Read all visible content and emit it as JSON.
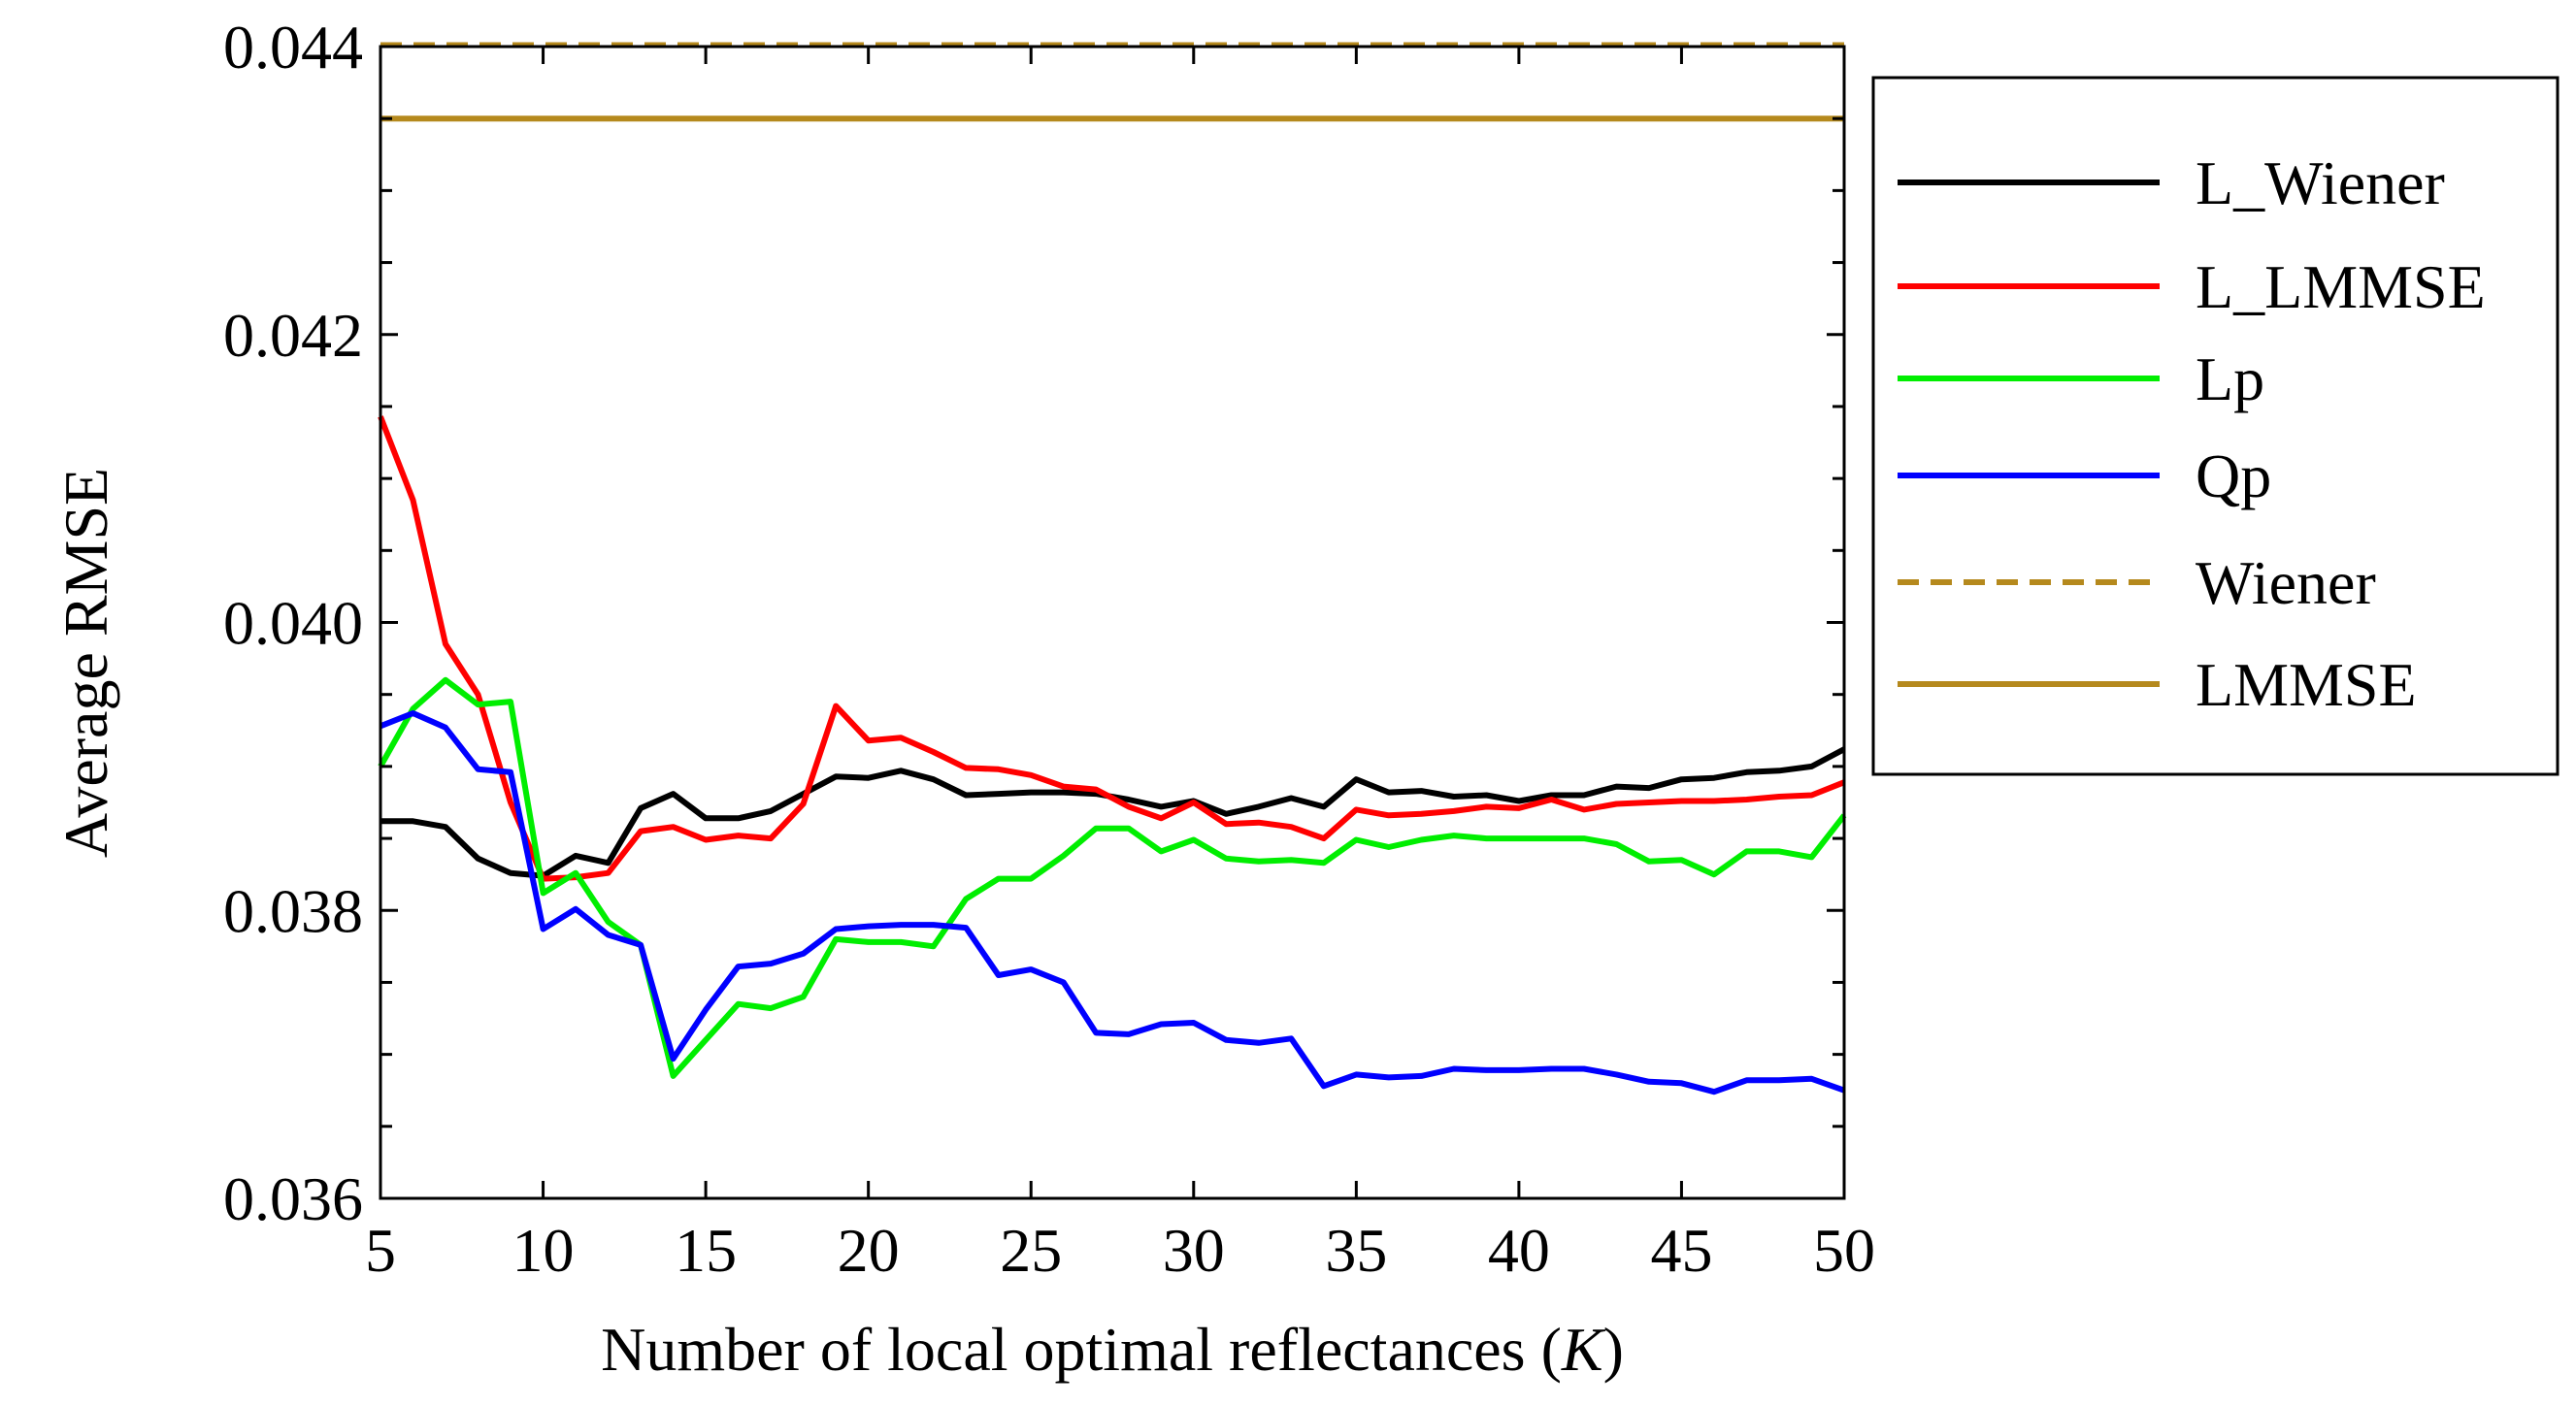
{
  "chart_data": {
    "type": "line",
    "title": "",
    "xlabel": "Number of local optimal reflectances (",
    "xlabel_var": "K",
    "xlabel_end": ")",
    "ylabel": "Average RMSE",
    "xlim": [
      5,
      50
    ],
    "ylim": [
      0.036,
      0.044
    ],
    "xticks": [
      5,
      10,
      15,
      20,
      25,
      30,
      35,
      40,
      45,
      50
    ],
    "xtick_labels": [
      "5",
      "10",
      "15",
      "20",
      "25",
      "30",
      "35",
      "40",
      "45",
      "50"
    ],
    "yticks": [
      0.036,
      0.038,
      0.04,
      0.042,
      0.044
    ],
    "ytick_labels": [
      "0.036",
      "0.038",
      "0.040",
      "0.042",
      "0.044"
    ],
    "legend_position": "outside-right",
    "x": [
      5,
      6,
      7,
      8,
      9,
      10,
      11,
      12,
      13,
      14,
      15,
      16,
      17,
      18,
      19,
      20,
      21,
      22,
      23,
      24,
      25,
      26,
      27,
      28,
      29,
      30,
      31,
      32,
      33,
      34,
      35,
      36,
      37,
      38,
      39,
      40,
      41,
      42,
      43,
      44,
      45,
      46,
      47,
      48,
      49,
      50
    ],
    "series": [
      {
        "name": "L_Wiener",
        "color": "#000000",
        "dash": "solid",
        "values": [
          0.03862,
          0.03862,
          0.03858,
          0.03836,
          0.03826,
          0.03824,
          0.03838,
          0.03833,
          0.03871,
          0.03881,
          0.03864,
          0.03864,
          0.03869,
          0.03881,
          0.03893,
          0.03892,
          0.03897,
          0.03891,
          0.0388,
          0.03881,
          0.03882,
          0.03882,
          0.03881,
          0.03877,
          0.03872,
          0.03876,
          0.03867,
          0.03872,
          0.03878,
          0.03872,
          0.03891,
          0.03882,
          0.03883,
          0.03879,
          0.0388,
          0.03876,
          0.0388,
          0.0388,
          0.03886,
          0.03885,
          0.03891,
          0.03892,
          0.03896,
          0.03897,
          0.039,
          0.03912
        ]
      },
      {
        "name": "L_LMMSE",
        "color": "#ff0000",
        "dash": "solid",
        "values": [
          0.04143,
          0.04085,
          0.03985,
          0.0395,
          0.03875,
          0.03822,
          0.03823,
          0.03826,
          0.03855,
          0.03858,
          0.03849,
          0.03852,
          0.0385,
          0.03874,
          0.03942,
          0.03918,
          0.0392,
          0.0391,
          0.03899,
          0.03898,
          0.03894,
          0.03886,
          0.03884,
          0.03872,
          0.03864,
          0.03875,
          0.0386,
          0.03861,
          0.03858,
          0.0385,
          0.0387,
          0.03866,
          0.03867,
          0.03869,
          0.03872,
          0.03871,
          0.03877,
          0.0387,
          0.03874,
          0.03875,
          0.03876,
          0.03876,
          0.03877,
          0.03879,
          0.0388,
          0.03889
        ]
      },
      {
        "name": "Lp",
        "color": "#00ee00",
        "dash": "solid",
        "values": [
          0.039,
          0.0394,
          0.0396,
          0.03943,
          0.03945,
          0.03812,
          0.03826,
          0.03792,
          0.03776,
          0.03685,
          0.0371,
          0.03735,
          0.03732,
          0.0374,
          0.0378,
          0.03778,
          0.03778,
          0.03775,
          0.03808,
          0.03822,
          0.03822,
          0.03838,
          0.03857,
          0.03857,
          0.03841,
          0.03849,
          0.03836,
          0.03834,
          0.03835,
          0.03833,
          0.03849,
          0.03844,
          0.03849,
          0.03852,
          0.0385,
          0.0385,
          0.0385,
          0.0385,
          0.03846,
          0.03834,
          0.03835,
          0.03825,
          0.03841,
          0.03841,
          0.03837,
          0.03866
        ]
      },
      {
        "name": "Qp",
        "color": "#0000ff",
        "dash": "solid",
        "values": [
          0.03928,
          0.03937,
          0.03927,
          0.03898,
          0.03896,
          0.03787,
          0.03801,
          0.03783,
          0.03776,
          0.03697,
          0.03731,
          0.03761,
          0.03763,
          0.0377,
          0.03787,
          0.03789,
          0.0379,
          0.0379,
          0.03788,
          0.03755,
          0.03759,
          0.0375,
          0.03715,
          0.03714,
          0.03721,
          0.03722,
          0.0371,
          0.03708,
          0.03711,
          0.03678,
          0.03686,
          0.03684,
          0.03685,
          0.0369,
          0.03689,
          0.03689,
          0.0369,
          0.0369,
          0.03686,
          0.03681,
          0.0368,
          0.03674,
          0.03682,
          0.03682,
          0.03683,
          0.03675
        ]
      },
      {
        "name": "Wiener",
        "color": "#b5891d",
        "dash": "dashed",
        "values": [
          0.04401,
          0.04401,
          0.04401,
          0.04401,
          0.04401,
          0.04401,
          0.04401,
          0.04401,
          0.04401,
          0.04401,
          0.04401,
          0.04401,
          0.04401,
          0.04401,
          0.04401,
          0.04401,
          0.04401,
          0.04401,
          0.04401,
          0.04401,
          0.04401,
          0.04401,
          0.04401,
          0.04401,
          0.04401,
          0.04401,
          0.04401,
          0.04401,
          0.04401,
          0.04401,
          0.04401,
          0.04401,
          0.04401,
          0.04401,
          0.04401,
          0.04401,
          0.04401,
          0.04401,
          0.04401,
          0.04401,
          0.04401,
          0.04401,
          0.04401,
          0.04401,
          0.04401,
          0.04401
        ]
      },
      {
        "name": "LMMSE",
        "color": "#b5891d",
        "dash": "solid",
        "values": [
          0.0435,
          0.0435,
          0.0435,
          0.0435,
          0.0435,
          0.0435,
          0.0435,
          0.0435,
          0.0435,
          0.0435,
          0.0435,
          0.0435,
          0.0435,
          0.0435,
          0.0435,
          0.0435,
          0.0435,
          0.0435,
          0.0435,
          0.0435,
          0.0435,
          0.0435,
          0.0435,
          0.0435,
          0.0435,
          0.0435,
          0.0435,
          0.0435,
          0.0435,
          0.0435,
          0.0435,
          0.0435,
          0.0435,
          0.0435,
          0.0435,
          0.0435,
          0.0435,
          0.0435,
          0.0435,
          0.0435,
          0.0435,
          0.0435,
          0.0435,
          0.0435,
          0.0435,
          0.0435
        ]
      }
    ]
  }
}
